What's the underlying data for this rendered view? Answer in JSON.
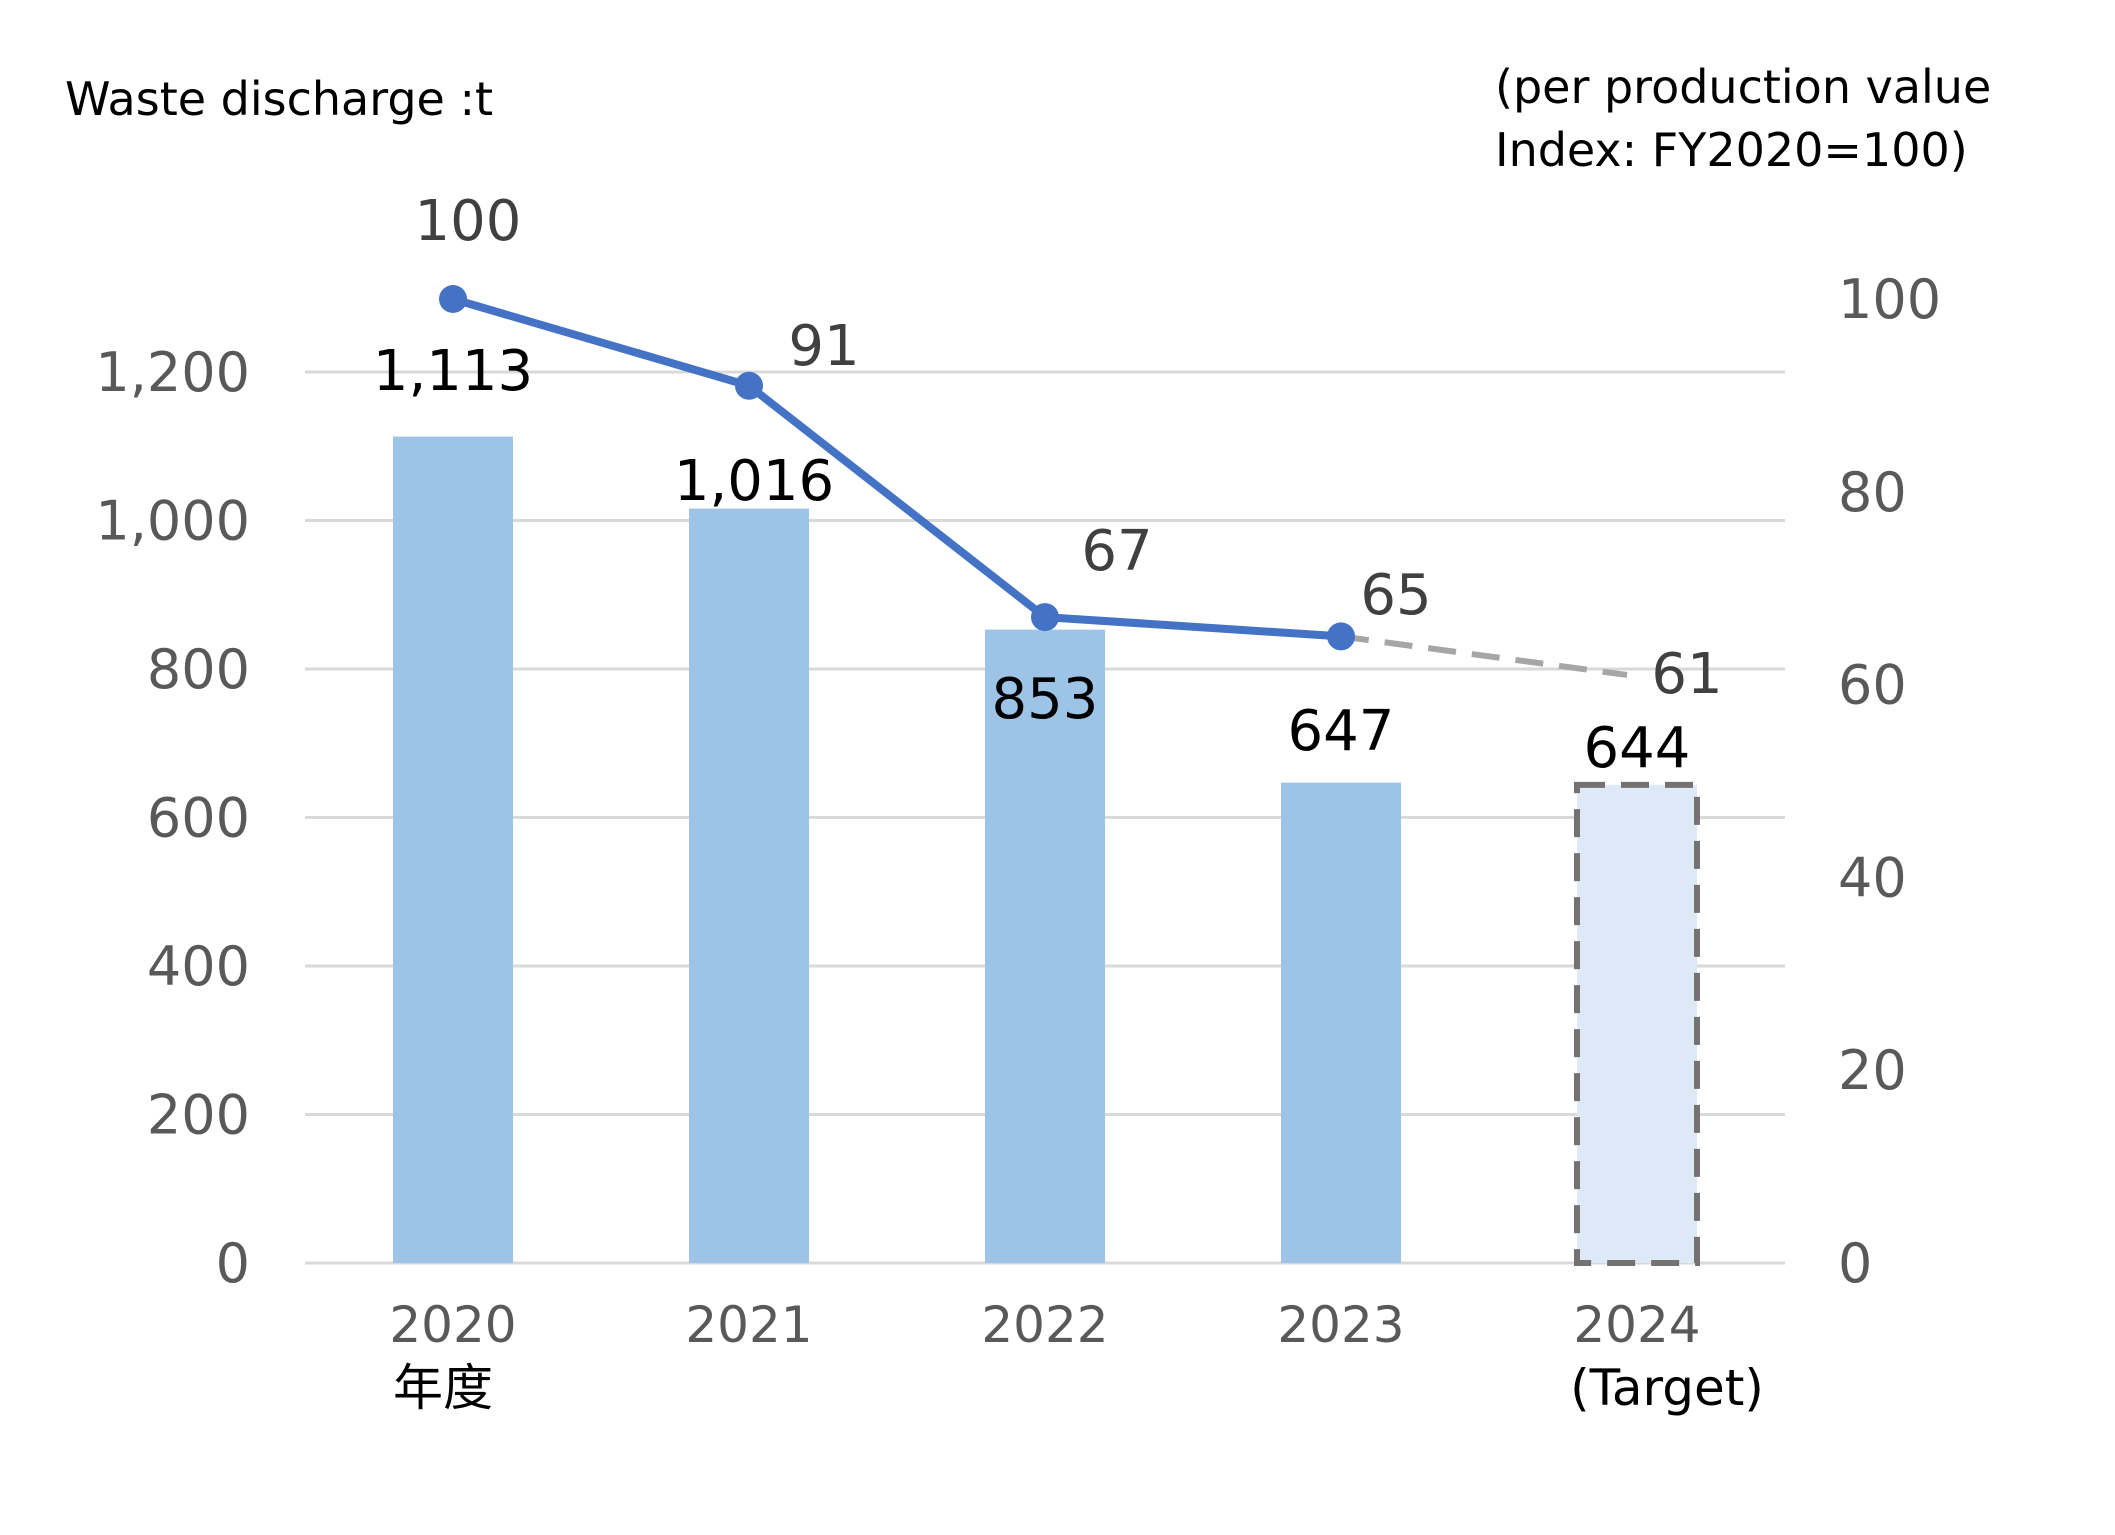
{
  "chart_data": {
    "type": "bar+line",
    "left_axis_title": "Waste discharge :t",
    "right_axis_title_line1": "(per production value",
    "right_axis_title_line2": "Index: FY2020=100)",
    "categories": [
      "2020",
      "2021",
      "2022",
      "2023",
      "2024"
    ],
    "category_sublabels": [
      "年度",
      "",
      "",
      "",
      "(Target)"
    ],
    "bars": {
      "values": [
        1113,
        1016,
        853,
        647,
        644
      ],
      "labels": [
        "1,113",
        "1,016",
        "853",
        "647",
        "644"
      ],
      "target_index": 4,
      "color": "#9dc3e6",
      "target_color": "#dde9f6",
      "target_border": "#767171"
    },
    "line": {
      "values": [
        100,
        91,
        67,
        65,
        61
      ],
      "labels": [
        "100",
        "91",
        "67",
        "65",
        "61"
      ],
      "color": "#4472c4",
      "forecast_color": "#a6a6a6"
    },
    "left_ticks": [
      "0",
      "200",
      "400",
      "600",
      "800",
      "1,000",
      "1,200"
    ],
    "left_tick_values": [
      0,
      200,
      400,
      600,
      800,
      1000,
      1200
    ],
    "left_ylim": [
      0,
      1200
    ],
    "right_ticks": [
      "0",
      "20",
      "40",
      "60",
      "80",
      "100"
    ],
    "right_tick_values": [
      0,
      20,
      40,
      60,
      80,
      100
    ],
    "right_ylim": [
      0,
      100
    ],
    "grid": true
  }
}
